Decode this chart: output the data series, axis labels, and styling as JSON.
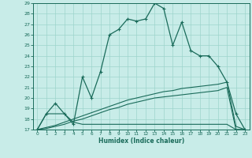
{
  "xlabel": "Humidex (Indice chaleur)",
  "bg_color": "#c8ece8",
  "grid_color": "#9dd4cc",
  "line_color": "#1a6b5a",
  "xlim": [
    -0.5,
    23.5
  ],
  "ylim": [
    17,
    29
  ],
  "xticks": [
    0,
    1,
    2,
    3,
    4,
    5,
    6,
    7,
    8,
    9,
    10,
    11,
    12,
    13,
    14,
    15,
    16,
    17,
    18,
    19,
    20,
    21,
    22,
    23
  ],
  "yticks": [
    17,
    18,
    19,
    20,
    21,
    22,
    23,
    24,
    25,
    26,
    27,
    28,
    29
  ],
  "curve1_x": [
    0,
    1,
    2,
    3,
    4,
    5,
    6,
    7,
    8,
    9,
    10,
    11,
    12,
    13,
    14,
    15,
    16,
    17,
    18,
    19,
    20,
    21,
    22,
    23
  ],
  "curve1_y": [
    17.0,
    18.5,
    19.5,
    18.5,
    17.5,
    22.0,
    20.0,
    22.5,
    26.0,
    26.5,
    27.5,
    27.3,
    27.5,
    29.0,
    28.5,
    25.0,
    27.2,
    24.5,
    24.0,
    24.0,
    23.0,
    21.5,
    18.5,
    17.0
  ],
  "curve2_x": [
    0,
    1,
    2,
    3,
    4,
    5,
    6,
    7,
    8,
    9,
    10,
    11,
    12,
    13,
    14,
    15,
    16,
    17,
    18,
    19,
    20,
    21,
    22,
    23
  ],
  "curve2_y": [
    17.0,
    18.5,
    18.5,
    18.5,
    17.7,
    17.5,
    17.5,
    17.5,
    17.5,
    17.5,
    17.5,
    17.5,
    17.5,
    17.5,
    17.5,
    17.5,
    17.5,
    17.5,
    17.5,
    17.5,
    17.5,
    17.5,
    17.0,
    17.0
  ],
  "curve3_x": [
    0,
    1,
    2,
    3,
    4,
    5,
    6,
    7,
    8,
    9,
    10,
    11,
    12,
    13,
    14,
    15,
    16,
    17,
    18,
    19,
    20,
    21,
    22,
    23
  ],
  "curve3_y": [
    17.0,
    17.2,
    17.4,
    17.7,
    18.0,
    18.3,
    18.6,
    18.9,
    19.2,
    19.5,
    19.8,
    20.0,
    20.2,
    20.4,
    20.6,
    20.7,
    20.9,
    21.0,
    21.1,
    21.2,
    21.3,
    21.5,
    17.3,
    17.0
  ],
  "curve4_x": [
    0,
    1,
    2,
    3,
    4,
    5,
    6,
    7,
    8,
    9,
    10,
    11,
    12,
    13,
    14,
    15,
    16,
    17,
    18,
    19,
    20,
    21,
    22,
    23
  ],
  "curve4_y": [
    17.0,
    17.1,
    17.3,
    17.5,
    17.8,
    18.0,
    18.3,
    18.6,
    18.9,
    19.1,
    19.4,
    19.6,
    19.8,
    20.0,
    20.1,
    20.2,
    20.3,
    20.4,
    20.5,
    20.6,
    20.7,
    21.0,
    17.0,
    17.0
  ]
}
